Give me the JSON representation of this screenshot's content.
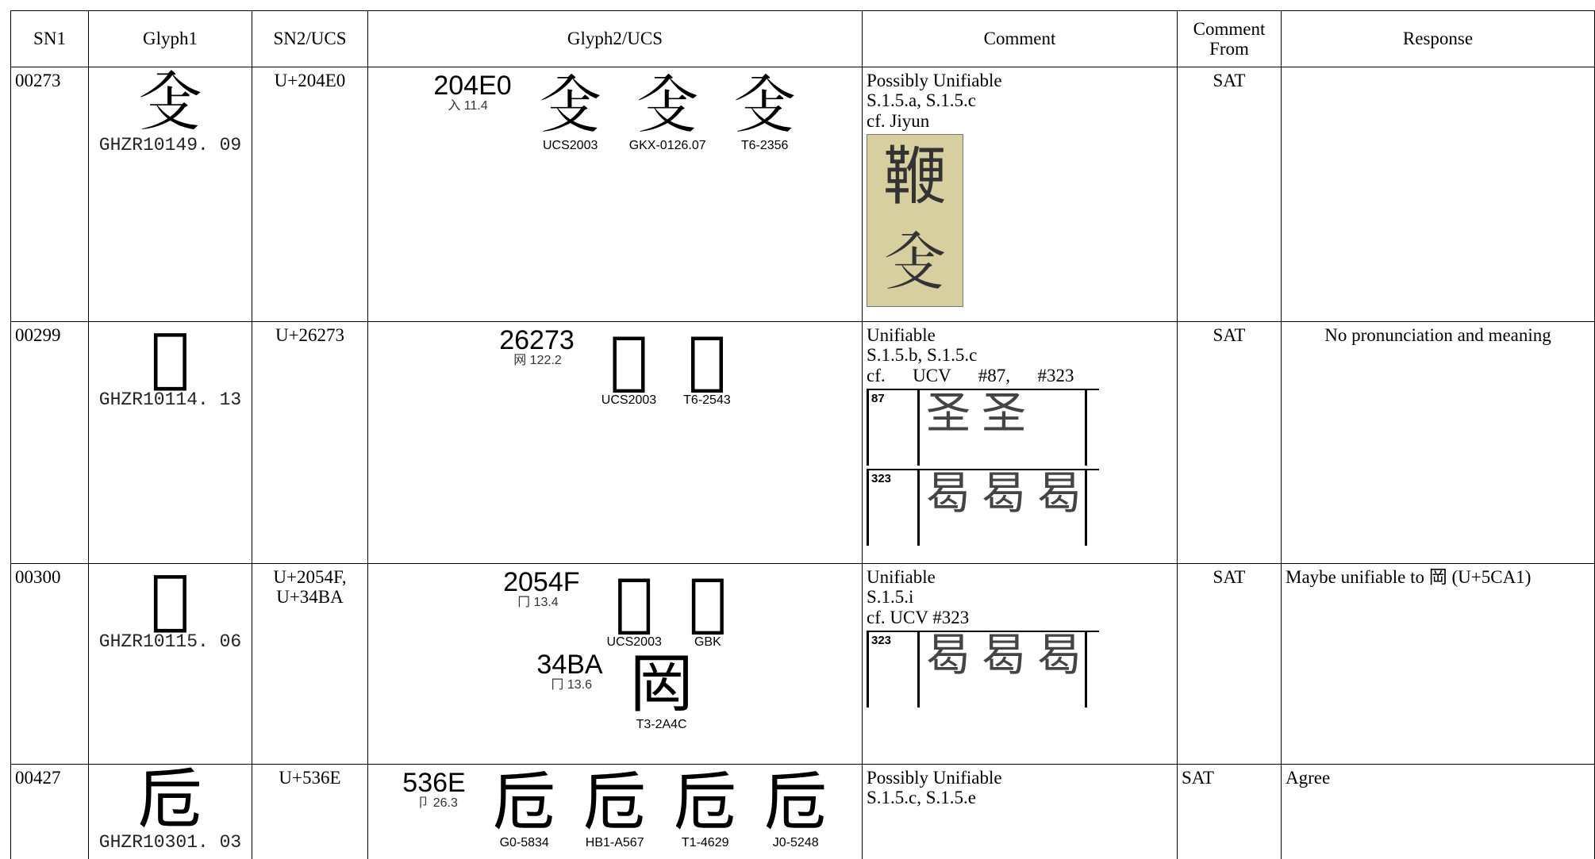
{
  "header": [
    "SN1",
    "Glyph1",
    "SN2/UCS",
    "Glyph2/UCS",
    "Comment",
    "Comment From",
    "Response"
  ],
  "rows": [
    {
      "sn1": "00273",
      "glyph1": {
        "char": "𠓠",
        "source": "GHZR10149. 09"
      },
      "sn2": [
        "U+204E0"
      ],
      "glyph2": [
        {
          "code": "204E0",
          "radical": "入 11.4",
          "glyphs": [
            {
              "char": "𠓠",
              "source": "UCS2003"
            },
            {
              "char": "𠓠",
              "source": "GKX-0126.07"
            },
            {
              "char": "𠓠",
              "source": "T6-2356"
            }
          ]
        }
      ],
      "comment": [
        "Possibly Unifiable",
        "S.1.5.a, S.1.5.c",
        "cf. Jiyun"
      ],
      "image": {
        "chars": [
          "鞭",
          "𠓠"
        ]
      },
      "comment_from": "SAT",
      "response": ""
    },
    {
      "sn1": "00299",
      "glyph1": {
        "char": "𦉳",
        "source": "GHZR10114. 13"
      },
      "sn2": [
        "U+26273"
      ],
      "glyph2": [
        {
          "code": "26273",
          "radical": "网 122.2",
          "glyphs": [
            {
              "char": "𦉳",
              "source": "UCS2003"
            },
            {
              "char": "𦉳",
              "source": "T6-2543"
            }
          ]
        }
      ],
      "comment": [
        "Unifiable",
        "S.1.5.b, S.1.5.c",
        "cf.      UCV      #87,      #323"
      ],
      "ucv": [
        {
          "num": "87",
          "chars": "圣 圣"
        },
        {
          "num": "323",
          "chars": "曷 曷 曷"
        }
      ],
      "comment_from": "SAT",
      "response": "No pronunciation and meaning"
    },
    {
      "sn1": "00300",
      "glyph1": {
        "char": "𠕏",
        "source": "GHZR10115. 06"
      },
      "sn2": [
        "U+2054F,",
        "U+34BA"
      ],
      "glyph2": [
        {
          "code": "2054F",
          "radical": "冂 13.4",
          "glyphs": [
            {
              "char": "𠕏",
              "source": "UCS2003"
            },
            {
              "char": "𠕏",
              "source": "GBK"
            }
          ]
        },
        {
          "code": "34BA",
          "radical": "冂 13.6",
          "glyphs": [
            {
              "char": "㒺",
              "source": "T3-2A4C"
            }
          ]
        }
      ],
      "comment": [
        "Unifiable",
        "S.1.5.i",
        "cf. UCV #323"
      ],
      "ucv": [
        {
          "num": "323",
          "chars": "曷 曷 曷"
        }
      ],
      "comment_from": "SAT",
      "response": "Maybe unifiable to 岡 (U+5CA1)"
    },
    {
      "sn1": "00427",
      "glyph1": {
        "char": "卮",
        "source": "GHZR10301. 03"
      },
      "sn2": [
        "U+536E"
      ],
      "glyph2": [
        {
          "code": "536E",
          "radical": "卩 26.3",
          "glyphs": [
            {
              "char": "卮",
              "source": "G0-5834"
            },
            {
              "char": "卮",
              "source": "HB1-A567"
            },
            {
              "char": "卮",
              "source": "T1-4629"
            },
            {
              "char": "卮",
              "source": "J0-5248"
            }
          ]
        }
      ],
      "comment": [
        "Possibly Unifiable",
        "S.1.5.c, S.1.5.e"
      ],
      "comment_from": "SAT",
      "response": "Agree"
    }
  ]
}
